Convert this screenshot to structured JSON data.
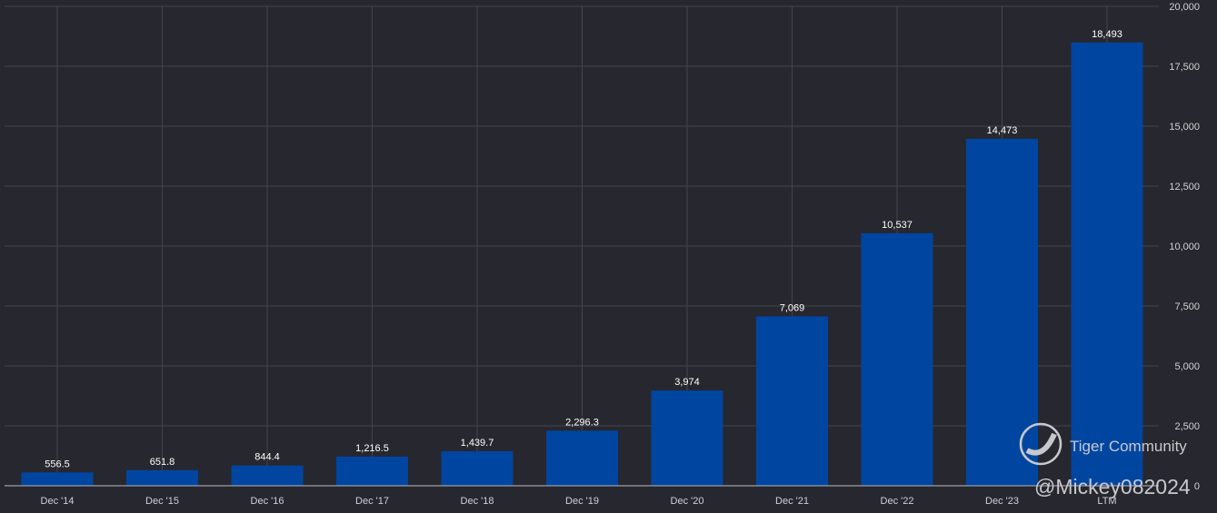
{
  "chart_data": {
    "type": "bar",
    "title": "",
    "xlabel": "",
    "ylabel": "",
    "categories": [
      "Dec '14",
      "Dec '15",
      "Dec '16",
      "Dec '17",
      "Dec '18",
      "Dec '19",
      "Dec '20",
      "Dec '21",
      "Dec '22",
      "Dec '23",
      "LTM"
    ],
    "values": [
      556.5,
      651.8,
      844.4,
      1216.5,
      1439.7,
      2296.3,
      3974,
      7069,
      10537,
      14473,
      18493
    ],
    "data_labels": [
      "556.5",
      "651.8",
      "844.4",
      "1,216.5",
      "1,439.7",
      "2,296.3",
      "3,974",
      "7,069",
      "10,537",
      "14,473",
      "18,493"
    ],
    "ylim": [
      0,
      20000
    ],
    "yticks": [
      0,
      2500,
      5000,
      7500,
      10000,
      12500,
      15000,
      17500,
      20000
    ],
    "ytick_labels": [
      "0",
      "2,500",
      "5,000",
      "7,500",
      "10,000",
      "12,500",
      "15,000",
      "17,500",
      "20,000"
    ],
    "grid": true,
    "y_axis_side": "right",
    "bar_color": "#0046a1",
    "background": "#27272f"
  },
  "watermark": {
    "brand": "Tiger Community",
    "handle": "@Mickey082024"
  }
}
